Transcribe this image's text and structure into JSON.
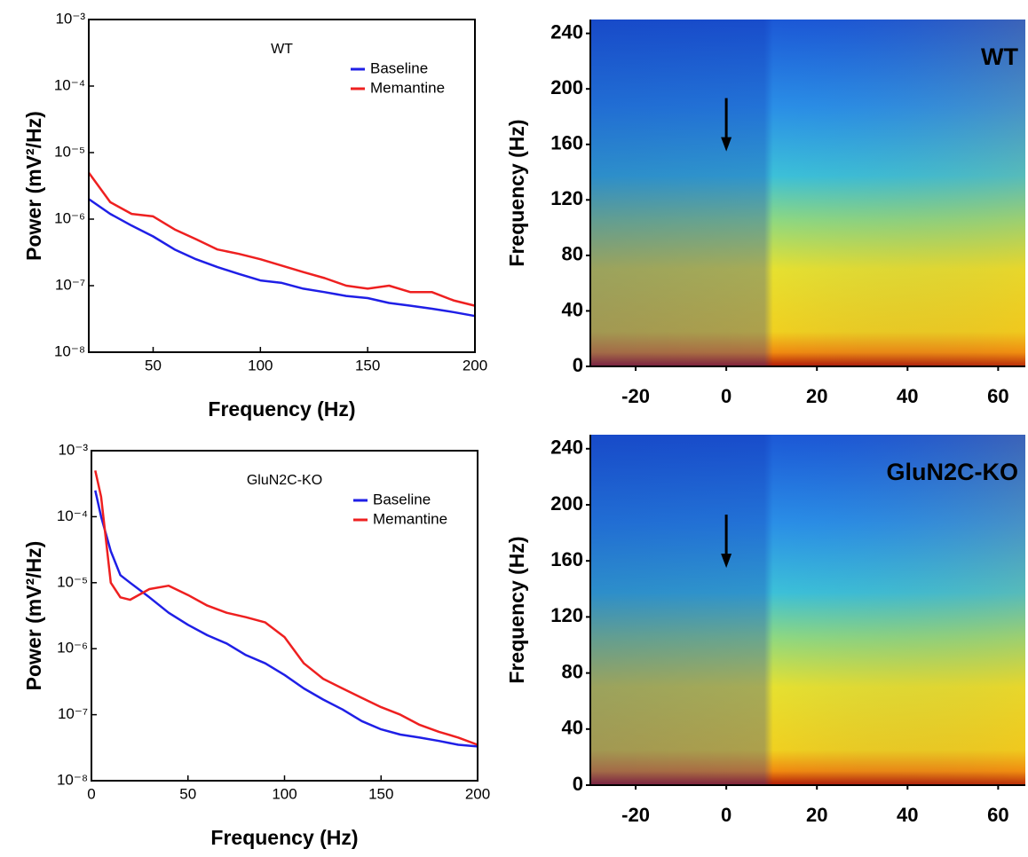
{
  "chart_data": [
    {
      "type": "line",
      "title": "WT",
      "xlabel": "Frequency (Hz)",
      "ylabel": "Power (mV²/Hz)",
      "log_y": true,
      "legend": "upper right",
      "xlim": [
        20,
        200
      ],
      "ylim": [
        1e-08,
        0.001
      ],
      "xticks": [
        50,
        100,
        150,
        200
      ],
      "yticks": [
        {
          "value": 1e-08,
          "label": "10⁻⁸"
        },
        {
          "value": 1e-07,
          "label": "10⁻⁷"
        },
        {
          "value": 1e-06,
          "label": "10⁻⁶"
        },
        {
          "value": 1e-05,
          "label": "10⁻⁵"
        },
        {
          "value": 0.0001,
          "label": "10⁻⁴"
        },
        {
          "value": 0.001,
          "label": "10⁻³"
        }
      ],
      "x": [
        20,
        30,
        40,
        50,
        60,
        70,
        80,
        90,
        100,
        110,
        120,
        130,
        140,
        150,
        160,
        170,
        180,
        190,
        200
      ],
      "series": [
        {
          "name": "Baseline",
          "color": "#1f1fe6",
          "values": [
            2e-06,
            1.2e-06,
            8e-07,
            5.5e-07,
            3.5e-07,
            2.5e-07,
            1.9e-07,
            1.5e-07,
            1.2e-07,
            1.1e-07,
            9e-08,
            8e-08,
            7e-08,
            6.5e-08,
            5.5e-08,
            5e-08,
            4.5e-08,
            4e-08,
            3.5e-08
          ]
        },
        {
          "name": "Memantine",
          "color": "#ee2020",
          "values": [
            5e-06,
            1.8e-06,
            1.2e-06,
            1.1e-06,
            7e-07,
            5e-07,
            3.5e-07,
            3e-07,
            2.5e-07,
            2e-07,
            1.6e-07,
            1.3e-07,
            1e-07,
            9e-08,
            1e-07,
            8e-08,
            8e-08,
            6e-08,
            5e-08
          ]
        }
      ]
    },
    {
      "type": "spectrogram",
      "title": "WT",
      "ylabel": "Frequency (Hz)",
      "xlim": [
        -30,
        66
      ],
      "ylim": [
        0,
        250
      ],
      "xticks": [
        -20,
        0,
        20,
        40,
        60
      ],
      "yticks": [
        0,
        40,
        80,
        120,
        160,
        200,
        240
      ]
    },
    {
      "type": "line",
      "title": "GluN2C-KO",
      "xlabel": "Frequency (Hz)",
      "ylabel": "Power (mV²/Hz)",
      "log_y": true,
      "legend": "upper right",
      "xlim": [
        0,
        200
      ],
      "ylim": [
        1e-08,
        0.001
      ],
      "xticks": [
        0,
        50,
        100,
        150,
        200
      ],
      "yticks": [
        {
          "value": 1e-08,
          "label": "10⁻⁸"
        },
        {
          "value": 1e-07,
          "label": "10⁻⁷"
        },
        {
          "value": 1e-06,
          "label": "10⁻⁶"
        },
        {
          "value": 1e-05,
          "label": "10⁻⁵"
        },
        {
          "value": 0.0001,
          "label": "10⁻⁴"
        },
        {
          "value": 0.001,
          "label": "10⁻³"
        }
      ],
      "x": [
        2,
        5,
        10,
        15,
        20,
        30,
        40,
        50,
        60,
        70,
        80,
        90,
        100,
        110,
        120,
        130,
        140,
        150,
        160,
        170,
        180,
        190,
        200
      ],
      "series": [
        {
          "name": "Baseline",
          "color": "#1f1fe6",
          "values": [
            0.00025,
            0.0001,
            3e-05,
            1.3e-05,
            1e-05,
            6e-06,
            3.5e-06,
            2.3e-06,
            1.6e-06,
            1.2e-06,
            8e-07,
            6e-07,
            4e-07,
            2.5e-07,
            1.7e-07,
            1.2e-07,
            8e-08,
            6e-08,
            5e-08,
            4.5e-08,
            4e-08,
            3.5e-08,
            3.3e-08
          ]
        },
        {
          "name": "Memantine",
          "color": "#ee2020",
          "values": [
            0.0005,
            0.0002,
            1e-05,
            6e-06,
            5.5e-06,
            8e-06,
            9e-06,
            6.5e-06,
            4.5e-06,
            3.5e-06,
            3e-06,
            2.5e-06,
            1.5e-06,
            6e-07,
            3.5e-07,
            2.5e-07,
            1.8e-07,
            1.3e-07,
            1e-07,
            7e-08,
            5.5e-08,
            4.5e-08,
            3.5e-08
          ]
        }
      ]
    },
    {
      "type": "spectrogram",
      "title": "GluN2C-KO",
      "ylabel": "Frequency (Hz)",
      "xlim": [
        -30,
        66
      ],
      "ylim": [
        0,
        250
      ],
      "xticks": [
        -20,
        0,
        20,
        40,
        60
      ],
      "yticks": [
        0,
        40,
        80,
        120,
        160,
        200,
        240
      ]
    }
  ]
}
